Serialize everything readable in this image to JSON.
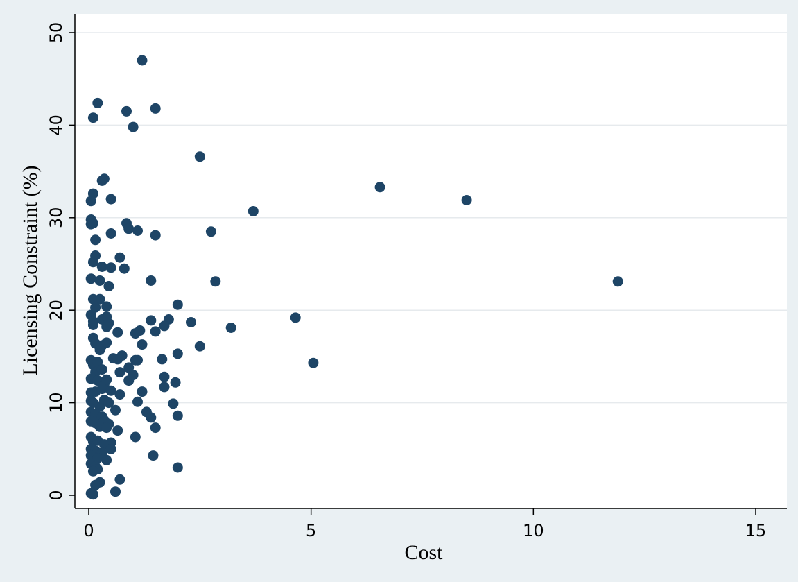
{
  "chart_data": {
    "type": "scatter",
    "title": "",
    "xlabel": "Cost",
    "ylabel": "Licensing Constraint (%)",
    "xlim": [
      0,
      16
    ],
    "ylim": [
      0,
      50
    ],
    "x_ticks": [
      0,
      5,
      10,
      15
    ],
    "y_ticks": [
      0,
      10,
      20,
      30,
      40,
      50
    ],
    "grid": "horizontal",
    "colors": {
      "point": "#1e4566",
      "plot_bg": "#ffffff",
      "outer_bg": "#eaf0f3",
      "grid": "#e6eaed"
    },
    "series": [
      {
        "points": [
          [
            1.2,
            47.0
          ],
          [
            0.2,
            42.4
          ],
          [
            0.1,
            40.8
          ],
          [
            0.85,
            41.5
          ],
          [
            1.5,
            41.8
          ],
          [
            1.0,
            39.8
          ],
          [
            2.5,
            36.6
          ],
          [
            0.3,
            34.0
          ],
          [
            0.35,
            34.2
          ],
          [
            6.55,
            33.3
          ],
          [
            0.1,
            32.6
          ],
          [
            0.05,
            31.8
          ],
          [
            0.5,
            32.0
          ],
          [
            8.5,
            31.9
          ],
          [
            3.7,
            30.7
          ],
          [
            0.05,
            29.8
          ],
          [
            0.1,
            29.4
          ],
          [
            0.05,
            29.3
          ],
          [
            0.85,
            29.4
          ],
          [
            0.9,
            28.8
          ],
          [
            1.1,
            28.6
          ],
          [
            0.5,
            28.3
          ],
          [
            1.5,
            28.1
          ],
          [
            2.75,
            28.5
          ],
          [
            0.15,
            27.6
          ],
          [
            0.15,
            25.9
          ],
          [
            0.1,
            25.2
          ],
          [
            0.3,
            24.7
          ],
          [
            0.7,
            25.7
          ],
          [
            0.8,
            24.5
          ],
          [
            0.5,
            24.6
          ],
          [
            0.05,
            23.4
          ],
          [
            0.25,
            23.2
          ],
          [
            0.45,
            22.6
          ],
          [
            1.4,
            23.2
          ],
          [
            2.85,
            23.1
          ],
          [
            11.9,
            23.1
          ],
          [
            0.1,
            21.2
          ],
          [
            0.25,
            21.2
          ],
          [
            0.15,
            20.3
          ],
          [
            0.4,
            20.4
          ],
          [
            0.05,
            19.5
          ],
          [
            0.1,
            18.8
          ],
          [
            0.1,
            18.4
          ],
          [
            0.3,
            19.0
          ],
          [
            0.4,
            19.3
          ],
          [
            0.45,
            18.6
          ],
          [
            0.4,
            18.2
          ],
          [
            2.0,
            20.6
          ],
          [
            1.4,
            18.9
          ],
          [
            1.8,
            19.0
          ],
          [
            1.7,
            18.3
          ],
          [
            2.3,
            18.7
          ],
          [
            3.2,
            18.1
          ],
          [
            4.65,
            19.2
          ],
          [
            0.65,
            17.6
          ],
          [
            1.05,
            17.5
          ],
          [
            1.15,
            17.8
          ],
          [
            1.5,
            17.7
          ],
          [
            0.1,
            17.0
          ],
          [
            0.15,
            16.4
          ],
          [
            0.3,
            16.2
          ],
          [
            0.4,
            16.5
          ],
          [
            1.2,
            16.3
          ],
          [
            2.5,
            16.1
          ],
          [
            0.25,
            15.7
          ],
          [
            0.05,
            14.6
          ],
          [
            0.1,
            14.1
          ],
          [
            0.2,
            14.4
          ],
          [
            0.55,
            14.8
          ],
          [
            0.65,
            14.7
          ],
          [
            0.75,
            15.1
          ],
          [
            1.05,
            14.6
          ],
          [
            1.1,
            14.6
          ],
          [
            1.65,
            14.7
          ],
          [
            2.0,
            15.3
          ],
          [
            5.05,
            14.3
          ],
          [
            0.15,
            13.3
          ],
          [
            0.3,
            13.6
          ],
          [
            0.7,
            13.3
          ],
          [
            0.9,
            13.8
          ],
          [
            0.9,
            12.4
          ],
          [
            1.0,
            13.0
          ],
          [
            0.05,
            12.6
          ],
          [
            0.2,
            12.4
          ],
          [
            0.35,
            12.0
          ],
          [
            0.4,
            12.5
          ],
          [
            1.7,
            12.8
          ],
          [
            1.95,
            12.2
          ],
          [
            0.05,
            11.1
          ],
          [
            0.15,
            11.2
          ],
          [
            0.3,
            11.5
          ],
          [
            0.5,
            11.3
          ],
          [
            0.7,
            10.9
          ],
          [
            1.2,
            11.2
          ],
          [
            1.7,
            11.7
          ],
          [
            0.05,
            10.2
          ],
          [
            0.1,
            10.0
          ],
          [
            0.25,
            9.6
          ],
          [
            0.35,
            10.3
          ],
          [
            0.45,
            10.0
          ],
          [
            1.1,
            10.1
          ],
          [
            1.9,
            9.9
          ],
          [
            0.05,
            9.0
          ],
          [
            0.15,
            8.8
          ],
          [
            0.3,
            8.5
          ],
          [
            0.6,
            9.2
          ],
          [
            1.3,
            9.0
          ],
          [
            0.05,
            8.0
          ],
          [
            0.15,
            7.8
          ],
          [
            0.35,
            8.1
          ],
          [
            0.45,
            7.7
          ],
          [
            1.4,
            8.4
          ],
          [
            2.0,
            8.6
          ],
          [
            0.25,
            7.4
          ],
          [
            0.4,
            7.3
          ],
          [
            0.65,
            7.0
          ],
          [
            1.5,
            7.3
          ],
          [
            1.05,
            6.3
          ],
          [
            0.05,
            6.3
          ],
          [
            0.1,
            5.8
          ],
          [
            0.2,
            5.9
          ],
          [
            0.35,
            5.5
          ],
          [
            0.5,
            5.7
          ],
          [
            0.05,
            5.0
          ],
          [
            0.15,
            4.8
          ],
          [
            0.3,
            4.6
          ],
          [
            0.5,
            5.0
          ],
          [
            0.05,
            4.3
          ],
          [
            0.2,
            4.0
          ],
          [
            0.4,
            3.8
          ],
          [
            1.45,
            4.3
          ],
          [
            0.05,
            3.4
          ],
          [
            0.15,
            3.1
          ],
          [
            0.2,
            2.8
          ],
          [
            2.0,
            3.0
          ],
          [
            0.1,
            2.6
          ],
          [
            0.25,
            1.4
          ],
          [
            0.15,
            1.1
          ],
          [
            0.7,
            1.7
          ],
          [
            0.6,
            0.4
          ],
          [
            0.05,
            0.2
          ],
          [
            0.1,
            0.1
          ]
        ]
      }
    ]
  }
}
